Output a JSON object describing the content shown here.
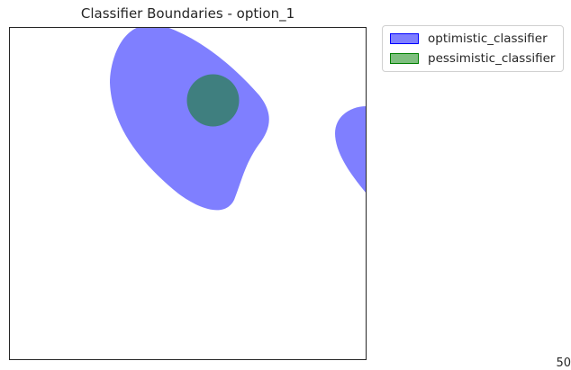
{
  "chart_data": {
    "type": "area",
    "title": "Classifier Boundaries - option_1",
    "xlabel": "",
    "ylabel": "",
    "axes_visible": false,
    "grid": false,
    "legend_position": "outside-top-right",
    "series": [
      {
        "name": "optimistic_classifier",
        "color": "#0000ff",
        "opacity": 0.5
      },
      {
        "name": "pessimistic_classifier",
        "color": "#008000",
        "opacity": 0.5
      }
    ],
    "corner_label": "50"
  }
}
